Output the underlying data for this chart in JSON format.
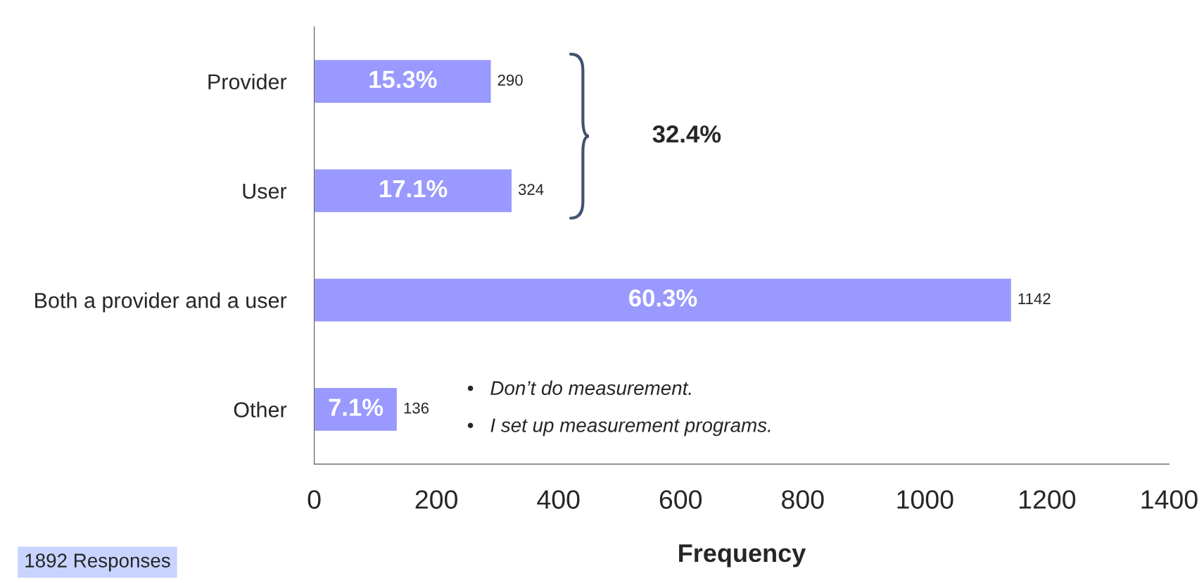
{
  "chart_data": {
    "type": "bar",
    "orientation": "horizontal",
    "xlabel": "Frequency",
    "categories": [
      "Provider",
      "User",
      "Both a provider and a user",
      "Other"
    ],
    "values": [
      290,
      324,
      1142,
      136
    ],
    "color": "#9999ff",
    "value_labels": [
      "290",
      "324",
      "1142",
      "136"
    ],
    "xlim": [
      0,
      1400
    ],
    "xticks": [
      0,
      200,
      400,
      600,
      800,
      1000,
      1200,
      1400
    ],
    "grid": false,
    "annotations": [
      "32.4%",
      "•   Don’t do measurement.",
      "•   I set up measurement programs.",
      "1892 Responses",
      "15.3%",
      "17.1%",
      "60.3%",
      "7.1%"
    ]
  }
}
